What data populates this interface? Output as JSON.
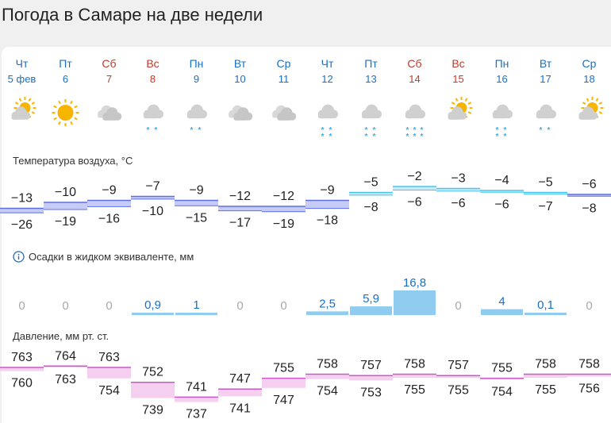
{
  "page": {
    "title": "Погода в Самаре на две недели"
  },
  "days": [
    {
      "dow": "Чт",
      "date": "5 фев",
      "weekend": false,
      "icon": "partly-cloudy-sun-icon"
    },
    {
      "dow": "Пт",
      "date": "6",
      "weekend": false,
      "icon": "sun-icon"
    },
    {
      "dow": "Сб",
      "date": "7",
      "weekend": true,
      "icon": "cloudy-icon"
    },
    {
      "dow": "Вс",
      "date": "8",
      "weekend": true,
      "icon": "cloud-light-snow-icon"
    },
    {
      "dow": "Пн",
      "date": "9",
      "weekend": false,
      "icon": "cloud-light-snow-icon"
    },
    {
      "dow": "Вт",
      "date": "10",
      "weekend": false,
      "icon": "cloudy-icon"
    },
    {
      "dow": "Ср",
      "date": "11",
      "weekend": false,
      "icon": "cloudy-icon"
    },
    {
      "dow": "Чт",
      "date": "12",
      "weekend": false,
      "icon": "cloud-snow-icon"
    },
    {
      "dow": "Пт",
      "date": "13",
      "weekend": false,
      "icon": "cloud-snow-icon"
    },
    {
      "dow": "Сб",
      "date": "14",
      "weekend": true,
      "icon": "cloud-heavy-snow-icon"
    },
    {
      "dow": "Вс",
      "date": "15",
      "weekend": true,
      "icon": "partly-cloudy-sun-icon"
    },
    {
      "dow": "Пн",
      "date": "16",
      "weekend": false,
      "icon": "cloud-snow-icon"
    },
    {
      "dow": "Вт",
      "date": "17",
      "weekend": false,
      "icon": "cloud-light-snow-icon"
    },
    {
      "dow": "Ср",
      "date": "18",
      "weekend": false,
      "icon": "partly-cloudy-sun-icon"
    }
  ],
  "sections": {
    "temperature_label": "Температура воздуха, °C",
    "precip_label": "Осадки в жидком эквиваленте, мм",
    "pressure_label": "Давление, мм рт. ст."
  },
  "colors": {
    "weekday": "#1a6fc4",
    "weekend": "#c0392b",
    "temp_negative_fill": "#c6ccf7",
    "temp_negative_line": "#5c6fe6",
    "temp_positive_fill": "#c5ecfa",
    "temp_positive_line": "#4cc3ef",
    "precip": "#8fccef",
    "pressure_fill": "#f4cff0",
    "pressure_line": "#c75ac4",
    "snow": "#39b0ee",
    "sun": "#f7b500",
    "cloud": "#d0d0d0"
  },
  "chart_data": [
    {
      "type": "area",
      "title": "Температура воздуха, °C",
      "categories": [
        "5 фев",
        "6",
        "7",
        "8",
        "9",
        "10",
        "11",
        "12",
        "13",
        "14",
        "15",
        "16",
        "17",
        "18"
      ],
      "series": [
        {
          "name": "max",
          "values": [
            -13,
            -10,
            -9,
            -7,
            -9,
            -12,
            -12,
            -9,
            -5,
            -2,
            -3,
            -4,
            -5,
            -6
          ]
        },
        {
          "name": "min",
          "values": [
            -26,
            -19,
            -16,
            -10,
            -15,
            -17,
            -19,
            -18,
            -8,
            -6,
            -6,
            -6,
            -7,
            -8
          ]
        }
      ]
    },
    {
      "type": "bar",
      "title": "Осадки в жидком эквиваленте, мм",
      "categories": [
        "5 фев",
        "6",
        "7",
        "8",
        "9",
        "10",
        "11",
        "12",
        "13",
        "14",
        "15",
        "16",
        "17",
        "18"
      ],
      "values": [
        0,
        0,
        0,
        0.9,
        1,
        0,
        0,
        2.5,
        5.9,
        16.8,
        0,
        4,
        0.1,
        0
      ],
      "labels": [
        "0",
        "0",
        "0",
        "0,9",
        "1",
        "0",
        "0",
        "2,5",
        "5,9",
        "16,8",
        "0",
        "4",
        "0,1",
        "0"
      ]
    },
    {
      "type": "area",
      "title": "Давление, мм рт. ст.",
      "categories": [
        "5 фев",
        "6",
        "7",
        "8",
        "9",
        "10",
        "11",
        "12",
        "13",
        "14",
        "15",
        "16",
        "17",
        "18"
      ],
      "series": [
        {
          "name": "max",
          "values": [
            763,
            764,
            763,
            752,
            741,
            747,
            755,
            758,
            757,
            758,
            757,
            755,
            758,
            758
          ]
        },
        {
          "name": "min",
          "values": [
            760,
            763,
            754,
            739,
            737,
            741,
            747,
            754,
            753,
            755,
            755,
            754,
            755,
            756
          ]
        }
      ]
    }
  ]
}
